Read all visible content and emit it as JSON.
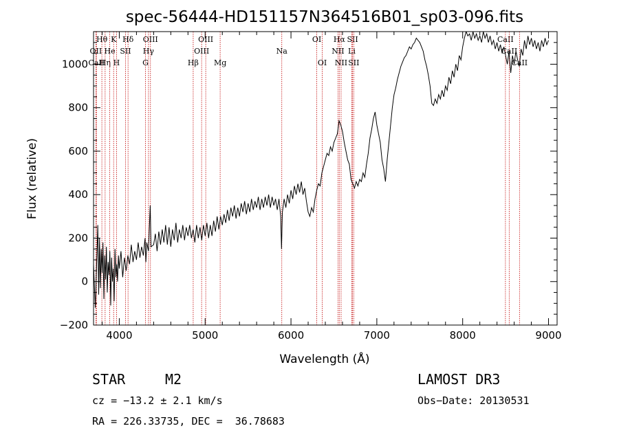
{
  "chart_data": {
    "type": "line",
    "title": "spec-56444-HD151157N364516B01_sp03-096.fits",
    "xlabel": "Wavelength (Å)",
    "ylabel": "Flux (relative)",
    "xlim": [
      3700,
      9100
    ],
    "ylim": [
      -200,
      1150
    ],
    "xticks": [
      4000,
      5000,
      6000,
      7000,
      8000,
      9000
    ],
    "yticks": [
      -200,
      0,
      200,
      400,
      600,
      800,
      1000
    ],
    "series": [
      {
        "name": "flux",
        "points": [
          [
            3700,
            80
          ],
          [
            3720,
            -120
          ],
          [
            3740,
            130
          ],
          [
            3750,
            260
          ],
          [
            3760,
            -60
          ],
          [
            3770,
            200
          ],
          [
            3780,
            -30
          ],
          [
            3790,
            150
          ],
          [
            3800,
            40
          ],
          [
            3810,
            180
          ],
          [
            3820,
            -80
          ],
          [
            3830,
            120
          ],
          [
            3840,
            10
          ],
          [
            3850,
            160
          ],
          [
            3860,
            -50
          ],
          [
            3870,
            90
          ],
          [
            3880,
            30
          ],
          [
            3890,
            140
          ],
          [
            3900,
            -110
          ],
          [
            3910,
            110
          ],
          [
            3920,
            0
          ],
          [
            3930,
            60
          ],
          [
            3940,
            -90
          ],
          [
            3950,
            150
          ],
          [
            3960,
            20
          ],
          [
            3970,
            80
          ],
          [
            3980,
            0
          ],
          [
            3990,
            120
          ],
          [
            4000,
            60
          ],
          [
            4020,
            140
          ],
          [
            4040,
            20
          ],
          [
            4060,
            110
          ],
          [
            4080,
            50
          ],
          [
            4100,
            120
          ],
          [
            4120,
            80
          ],
          [
            4140,
            170
          ],
          [
            4160,
            90
          ],
          [
            4180,
            140
          ],
          [
            4200,
            100
          ],
          [
            4220,
            180
          ],
          [
            4240,
            110
          ],
          [
            4260,
            160
          ],
          [
            4280,
            120
          ],
          [
            4300,
            200
          ],
          [
            4310,
            90
          ],
          [
            4320,
            180
          ],
          [
            4340,
            140
          ],
          [
            4360,
            350
          ],
          [
            4370,
            160
          ],
          [
            4400,
            170
          ],
          [
            4420,
            220
          ],
          [
            4440,
            140
          ],
          [
            4460,
            230
          ],
          [
            4480,
            170
          ],
          [
            4500,
            240
          ],
          [
            4520,
            180
          ],
          [
            4540,
            260
          ],
          [
            4560,
            170
          ],
          [
            4580,
            250
          ],
          [
            4600,
            160
          ],
          [
            4620,
            240
          ],
          [
            4640,
            190
          ],
          [
            4660,
            270
          ],
          [
            4680,
            180
          ],
          [
            4700,
            240
          ],
          [
            4720,
            200
          ],
          [
            4740,
            260
          ],
          [
            4760,
            190
          ],
          [
            4780,
            250
          ],
          [
            4800,
            210
          ],
          [
            4820,
            260
          ],
          [
            4840,
            200
          ],
          [
            4860,
            240
          ],
          [
            4880,
            180
          ],
          [
            4900,
            260
          ],
          [
            4920,
            200
          ],
          [
            4940,
            250
          ],
          [
            4960,
            190
          ],
          [
            4980,
            260
          ],
          [
            5000,
            210
          ],
          [
            5020,
            270
          ],
          [
            5040,
            200
          ],
          [
            5060,
            260
          ],
          [
            5080,
            210
          ],
          [
            5100,
            280
          ],
          [
            5120,
            230
          ],
          [
            5140,
            300
          ],
          [
            5160,
            240
          ],
          [
            5180,
            300
          ],
          [
            5200,
            260
          ],
          [
            5220,
            310
          ],
          [
            5240,
            270
          ],
          [
            5260,
            330
          ],
          [
            5280,
            280
          ],
          [
            5300,
            340
          ],
          [
            5320,
            300
          ],
          [
            5340,
            350
          ],
          [
            5360,
            290
          ],
          [
            5380,
            340
          ],
          [
            5400,
            300
          ],
          [
            5420,
            360
          ],
          [
            5440,
            320
          ],
          [
            5460,
            370
          ],
          [
            5480,
            310
          ],
          [
            5500,
            360
          ],
          [
            5520,
            320
          ],
          [
            5540,
            380
          ],
          [
            5560,
            330
          ],
          [
            5580,
            370
          ],
          [
            5600,
            340
          ],
          [
            5620,
            390
          ],
          [
            5640,
            330
          ],
          [
            5660,
            380
          ],
          [
            5680,
            340
          ],
          [
            5700,
            390
          ],
          [
            5720,
            350
          ],
          [
            5740,
            400
          ],
          [
            5760,
            340
          ],
          [
            5780,
            390
          ],
          [
            5800,
            350
          ],
          [
            5820,
            380
          ],
          [
            5840,
            330
          ],
          [
            5860,
            380
          ],
          [
            5880,
            300
          ],
          [
            5890,
            150
          ],
          [
            5900,
            320
          ],
          [
            5920,
            380
          ],
          [
            5940,
            340
          ],
          [
            5960,
            400
          ],
          [
            5980,
            360
          ],
          [
            6000,
            420
          ],
          [
            6020,
            380
          ],
          [
            6040,
            440
          ],
          [
            6060,
            400
          ],
          [
            6080,
            450
          ],
          [
            6100,
            410
          ],
          [
            6120,
            460
          ],
          [
            6140,
            400
          ],
          [
            6160,
            430
          ],
          [
            6180,
            370
          ],
          [
            6200,
            320
          ],
          [
            6220,
            300
          ],
          [
            6240,
            340
          ],
          [
            6260,
            320
          ],
          [
            6280,
            380
          ],
          [
            6300,
            420
          ],
          [
            6320,
            450
          ],
          [
            6340,
            440
          ],
          [
            6360,
            500
          ],
          [
            6380,
            530
          ],
          [
            6400,
            560
          ],
          [
            6420,
            590
          ],
          [
            6440,
            580
          ],
          [
            6460,
            620
          ],
          [
            6480,
            600
          ],
          [
            6500,
            640
          ],
          [
            6520,
            660
          ],
          [
            6540,
            680
          ],
          [
            6560,
            740
          ],
          [
            6580,
            720
          ],
          [
            6600,
            690
          ],
          [
            6620,
            640
          ],
          [
            6640,
            600
          ],
          [
            6660,
            560
          ],
          [
            6680,
            540
          ],
          [
            6700,
            470
          ],
          [
            6720,
            450
          ],
          [
            6740,
            430
          ],
          [
            6760,
            460
          ],
          [
            6780,
            440
          ],
          [
            6800,
            470
          ],
          [
            6820,
            460
          ],
          [
            6840,
            500
          ],
          [
            6860,
            480
          ],
          [
            6880,
            540
          ],
          [
            6900,
            590
          ],
          [
            6920,
            660
          ],
          [
            6940,
            700
          ],
          [
            6960,
            750
          ],
          [
            6980,
            780
          ],
          [
            7000,
            720
          ],
          [
            7020,
            680
          ],
          [
            7040,
            640
          ],
          [
            7060,
            560
          ],
          [
            7080,
            520
          ],
          [
            7100,
            460
          ],
          [
            7120,
            560
          ],
          [
            7140,
            640
          ],
          [
            7160,
            720
          ],
          [
            7180,
            800
          ],
          [
            7200,
            860
          ],
          [
            7220,
            890
          ],
          [
            7240,
            930
          ],
          [
            7260,
            960
          ],
          [
            7280,
            990
          ],
          [
            7300,
            1010
          ],
          [
            7320,
            1030
          ],
          [
            7340,
            1040
          ],
          [
            7360,
            1060
          ],
          [
            7380,
            1080
          ],
          [
            7400,
            1070
          ],
          [
            7420,
            1090
          ],
          [
            7440,
            1100
          ],
          [
            7460,
            1120
          ],
          [
            7480,
            1110
          ],
          [
            7500,
            1100
          ],
          [
            7520,
            1080
          ],
          [
            7540,
            1060
          ],
          [
            7560,
            1020
          ],
          [
            7580,
            990
          ],
          [
            7600,
            950
          ],
          [
            7620,
            900
          ],
          [
            7640,
            820
          ],
          [
            7660,
            810
          ],
          [
            7680,
            840
          ],
          [
            7700,
            820
          ],
          [
            7720,
            860
          ],
          [
            7740,
            840
          ],
          [
            7760,
            880
          ],
          [
            7780,
            850
          ],
          [
            7800,
            900
          ],
          [
            7820,
            880
          ],
          [
            7840,
            940
          ],
          [
            7860,
            910
          ],
          [
            7880,
            970
          ],
          [
            7900,
            940
          ],
          [
            7920,
            1000
          ],
          [
            7940,
            970
          ],
          [
            7960,
            1040
          ],
          [
            7980,
            1020
          ],
          [
            8000,
            1080
          ],
          [
            8020,
            1120
          ],
          [
            8040,
            1150
          ],
          [
            8060,
            1130
          ],
          [
            8080,
            1140
          ],
          [
            8100,
            1110
          ],
          [
            8120,
            1150
          ],
          [
            8140,
            1120
          ],
          [
            8160,
            1140
          ],
          [
            8180,
            1110
          ],
          [
            8200,
            1130
          ],
          [
            8220,
            1100
          ],
          [
            8240,
            1150
          ],
          [
            8260,
            1120
          ],
          [
            8280,
            1140
          ],
          [
            8300,
            1100
          ],
          [
            8320,
            1130
          ],
          [
            8340,
            1090
          ],
          [
            8360,
            1110
          ],
          [
            8380,
            1070
          ],
          [
            8400,
            1100
          ],
          [
            8420,
            1060
          ],
          [
            8440,
            1090
          ],
          [
            8460,
            1050
          ],
          [
            8480,
            1080
          ],
          [
            8500,
            1040
          ],
          [
            8520,
            1000
          ],
          [
            8540,
            1060
          ],
          [
            8560,
            960
          ],
          [
            8580,
            1040
          ],
          [
            8600,
            1000
          ],
          [
            8620,
            1060
          ],
          [
            8640,
            1020
          ],
          [
            8660,
            990
          ],
          [
            8680,
            1070
          ],
          [
            8700,
            1040
          ],
          [
            8720,
            1110
          ],
          [
            8740,
            1070
          ],
          [
            8760,
            1130
          ],
          [
            8780,
            1090
          ],
          [
            8800,
            1120
          ],
          [
            8820,
            1080
          ],
          [
            8840,
            1110
          ],
          [
            8860,
            1070
          ],
          [
            8880,
            1100
          ],
          [
            8900,
            1060
          ],
          [
            8920,
            1110
          ],
          [
            8940,
            1080
          ],
          [
            8960,
            1120
          ],
          [
            8980,
            1090
          ],
          [
            9000,
            1110
          ]
        ]
      }
    ],
    "lines": [
      {
        "label": "Hθ",
        "x": 3797,
        "row": 0
      },
      {
        "label": "OII",
        "x": 3727,
        "row": 1
      },
      {
        "label": "CaII",
        "x": 3734,
        "row": 2
      },
      {
        "label": "Hη",
        "x": 3835,
        "row": 2
      },
      {
        "label": "He",
        "x": 3889,
        "row": 1
      },
      {
        "label": "K",
        "x": 3934,
        "row": 0
      },
      {
        "label": "H",
        "x": 3968,
        "row": 2
      },
      {
        "label": "SII",
        "x": 4072,
        "row": 1
      },
      {
        "label": "Hδ",
        "x": 4102,
        "row": 0
      },
      {
        "label": "OIII",
        "x": 4363,
        "row": 0
      },
      {
        "label": "Hγ",
        "x": 4340,
        "row": 1
      },
      {
        "label": "G",
        "x": 4305,
        "row": 2
      },
      {
        "label": "Hβ",
        "x": 4861,
        "row": 2
      },
      {
        "label": "OIII",
        "x": 5007,
        "row": 0
      },
      {
        "label": "OIII",
        "x": 4959,
        "row": 1
      },
      {
        "label": "Mg",
        "x": 5175,
        "row": 2
      },
      {
        "label": "Na",
        "x": 5893,
        "row": 1
      },
      {
        "label": "OI",
        "x": 6300,
        "row": 0
      },
      {
        "label": "OI",
        "x": 6364,
        "row": 2
      },
      {
        "label": "Hα",
        "x": 6563,
        "row": 0
      },
      {
        "label": "NII",
        "x": 6548,
        "row": 1
      },
      {
        "label": "NII",
        "x": 6584,
        "row": 2
      },
      {
        "label": "SII",
        "x": 6717,
        "row": 0
      },
      {
        "label": "Li",
        "x": 6708,
        "row": 1
      },
      {
        "label": "SII",
        "x": 6731,
        "row": 2
      },
      {
        "label": "CaII",
        "x": 8498,
        "row": 0
      },
      {
        "label": "CaII",
        "x": 8542,
        "row": 1
      },
      {
        "label": "CaII",
        "x": 8662,
        "row": 2
      }
    ]
  },
  "info": {
    "object_type": "STAR",
    "subclass": "M2",
    "survey": "LAMOST DR3",
    "velocity": "cz = −13.2 ± 2.1 km/s",
    "obs_date": "Obs−Date: 20130531",
    "coords": "RA = 226.33735, DEC =  36.78683"
  }
}
